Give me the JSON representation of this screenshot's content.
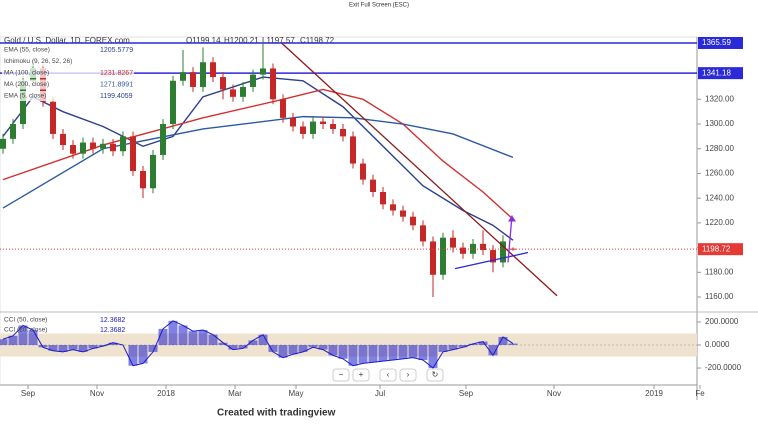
{
  "chart_data": {
    "type": "candlestick",
    "top_note": "Exit Full Screen (ESC)",
    "title": "Gold / U.S. Dollar, 1D, FOREX.com",
    "ohlc_labels": [
      "O",
      "H",
      "L",
      "C"
    ],
    "footer": "Created with tradingview",
    "up_color": "#2e7d32",
    "down_color": "#c62828",
    "xlim": [
      -0.3,
      69.4
    ],
    "xticks": [
      {
        "value": 2.5,
        "label": "Sep"
      },
      {
        "value": 9.4,
        "label": "Nov"
      },
      {
        "value": 16.3,
        "label": "2018"
      },
      {
        "value": 23.2,
        "label": "Mar"
      },
      {
        "value": 29.3,
        "label": "May"
      },
      {
        "value": 37.7,
        "label": "Jul"
      },
      {
        "value": 46.3,
        "label": "Sep"
      },
      {
        "value": 55.1,
        "label": "Nov"
      },
      {
        "value": 65.1,
        "label": "2019"
      },
      {
        "value": 69.7,
        "label": "Fe"
      }
    ],
    "ylim": [
      1149.5,
      1368
    ],
    "yticks": [
      {
        "value": 1160,
        "label": "1160.00"
      },
      {
        "value": 1180,
        "label": "1180.00"
      },
      {
        "value": 1200,
        "label": "1200.00"
      },
      {
        "value": 1220,
        "label": "1220.00"
      },
      {
        "value": 1240,
        "label": "1240.00"
      },
      {
        "value": 1260,
        "label": "1260.00"
      },
      {
        "value": 1280,
        "label": "1280.00"
      },
      {
        "value": 1300,
        "label": "1300.00"
      },
      {
        "value": 1320,
        "label": "1320.00"
      }
    ],
    "open": [
      1280,
      1288,
      1300,
      1335,
      1345,
      1318,
      1292,
      1283,
      1276,
      1285,
      1280,
      1284,
      1278,
      1290,
      1262,
      1248,
      1275,
      1300,
      1335,
      1342,
      1330,
      1350,
      1338,
      1328,
      1322,
      1330,
      1340,
      1345,
      1320,
      1305,
      1298,
      1292,
      1302,
      1300,
      1296,
      1290,
      1268,
      1255,
      1245,
      1235,
      1230,
      1225,
      1218,
      1205,
      1178,
      1208,
      1200,
      1195,
      1203,
      1198,
      1188,
      1199.14
    ],
    "high": [
      1292,
      1304,
      1339,
      1352,
      1349,
      1322,
      1296,
      1287,
      1289,
      1289,
      1288,
      1288,
      1294,
      1294,
      1266,
      1279,
      1304,
      1339,
      1360,
      1346,
      1362,
      1354,
      1342,
      1332,
      1334,
      1344,
      1366,
      1349,
      1324,
      1309,
      1302,
      1306,
      1306,
      1304,
      1300,
      1294,
      1272,
      1259,
      1249,
      1239,
      1234,
      1229,
      1222,
      1209,
      1212,
      1214,
      1204,
      1207,
      1214,
      1202,
      1210,
      1200.21
    ],
    "low": [
      1276,
      1284,
      1296,
      1331,
      1314,
      1288,
      1279,
      1272,
      1272,
      1276,
      1276,
      1274,
      1274,
      1258,
      1240,
      1244,
      1271,
      1296,
      1331,
      1326,
      1326,
      1334,
      1320,
      1318,
      1318,
      1326,
      1336,
      1316,
      1301,
      1294,
      1288,
      1288,
      1296,
      1292,
      1286,
      1264,
      1251,
      1241,
      1231,
      1226,
      1221,
      1214,
      1201,
      1160,
      1174,
      1196,
      1191,
      1191,
      1194,
      1180,
      1184,
      1197.57
    ],
    "close": [
      1288,
      1300,
      1335,
      1345,
      1318,
      1292,
      1283,
      1276,
      1285,
      1280,
      1284,
      1278,
      1290,
      1262,
      1248,
      1275,
      1300,
      1335,
      1342,
      1330,
      1350,
      1338,
      1328,
      1322,
      1330,
      1340,
      1345,
      1320,
      1305,
      1298,
      1292,
      1302,
      1300,
      1296,
      1290,
      1268,
      1255,
      1245,
      1235,
      1230,
      1225,
      1218,
      1205,
      1178,
      1208,
      1200,
      1195,
      1203,
      1198,
      1188,
      1205,
      1198.72
    ],
    "last_price": 1198.72,
    "last_price_color": "#e53935",
    "price_lines": [
      {
        "value": 1365.59,
        "color": "#2a2ad8"
      },
      {
        "value": 1341.18,
        "color": "#2a2ad8"
      }
    ],
    "lines": [
      {
        "name": "EMA (55, close)",
        "value": 1205.5779,
        "color": "#2b3f8f",
        "x": [
          0,
          3,
          6,
          10,
          14,
          17,
          20,
          26,
          30,
          34,
          38,
          42,
          46,
          49,
          51
        ],
        "values": [
          1290,
          1322,
          1310,
          1298,
          1282,
          1290,
          1322,
          1338,
          1335,
          1314,
          1282,
          1250,
          1230,
          1218,
          1206
        ]
      },
      {
        "name": "MA (100, close)",
        "value": 1231.8267,
        "color": "#d32f2f",
        "x": [
          0,
          10,
          20,
          28,
          32,
          36,
          40,
          44,
          48,
          51
        ],
        "values": [
          1255,
          1283,
          1305,
          1320,
          1328,
          1320,
          1300,
          1270,
          1245,
          1223
        ]
      },
      {
        "name": "MA (200, close)",
        "value": 1271.8991,
        "color": "#2c5aa0",
        "x": [
          0,
          10,
          20,
          30,
          35,
          40,
          45,
          51
        ],
        "values": [
          1232,
          1280,
          1296,
          1306,
          1305,
          1300,
          1292,
          1273
        ]
      }
    ],
    "legend_extra": [
      {
        "name": "Ichimoku (9, 26, 52, 26)",
        "color": "#888"
      },
      {
        "name": "EMA (5, close)",
        "value": 1199.4059,
        "color": "#2b3f8f"
      }
    ],
    "drawings": [
      {
        "color": "#8b1a1a",
        "x": [
          27.8,
          55.4
        ],
        "values": [
          1366,
          1161
        ]
      },
      {
        "color": "#2a2ad8",
        "x": [
          45.2,
          52.5
        ],
        "values": [
          1183,
          1196
        ]
      },
      {
        "color": "#8a2be2",
        "x": [
          50.5,
          50.9
        ],
        "values": [
          1188,
          1226
        ]
      }
    ],
    "cci": {
      "names": [
        "CCI (50, close)",
        "CCI (20, close)"
      ],
      "legend_values": [
        12.3682,
        12.3682
      ],
      "color": "#1a1acc",
      "ylim": [
        -304,
        278
      ],
      "yticks": [
        {
          "value": 200,
          "label": "200.0000"
        },
        {
          "value": 0,
          "label": "0.0000"
        },
        {
          "value": -200,
          "label": "-200.0000"
        }
      ],
      "band": [
        -100,
        100
      ],
      "values": [
        50,
        80,
        170,
        130,
        -20,
        -50,
        -60,
        -40,
        -60,
        -30,
        -10,
        20,
        0,
        -180,
        -160,
        -60,
        140,
        210,
        170,
        120,
        130,
        90,
        20,
        -40,
        -30,
        40,
        90,
        -60,
        -110,
        -80,
        -60,
        -20,
        -40,
        -90,
        -120,
        -180,
        -160,
        -150,
        -140,
        -130,
        -120,
        -110,
        -130,
        -200,
        -60,
        -40,
        -20,
        10,
        30,
        -90,
        70,
        12.3682
      ]
    }
  }
}
